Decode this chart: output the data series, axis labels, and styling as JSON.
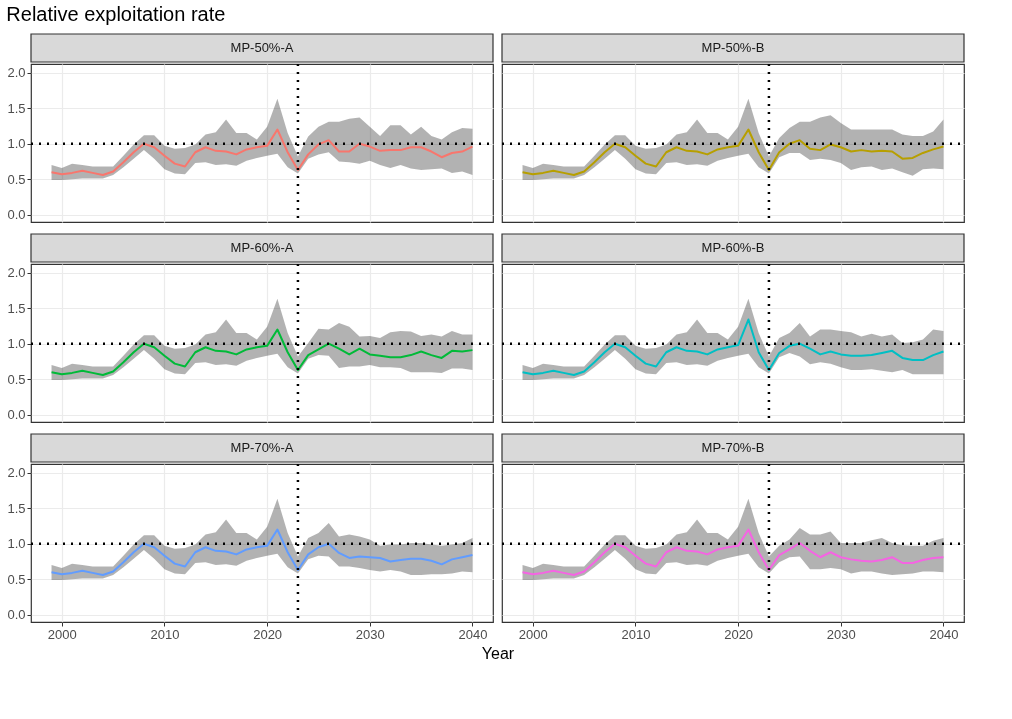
{
  "chart_data": [
    {
      "type": "line",
      "title": "MP-50%-A",
      "ylabel": "Relative exploitation rate",
      "x": [
        1999,
        2000,
        2001,
        2002,
        2003,
        2004,
        2005,
        2006,
        2007,
        2008,
        2009,
        2010,
        2011,
        2012,
        2013,
        2014,
        2015,
        2016,
        2017,
        2018,
        2019,
        2020,
        2021,
        2022,
        2023,
        2024,
        2025,
        2026,
        2027,
        2028,
        2029,
        2030,
        2031,
        2032,
        2033,
        2034,
        2035,
        2036,
        2037,
        2038,
        2039,
        2040
      ],
      "xlim": [
        1997,
        2042
      ],
      "xticks": [
        2000,
        2010,
        2020,
        2030,
        2040
      ],
      "ylim": [
        -0.1,
        2.12
      ],
      "yticks": [
        {
          "value": 0,
          "label": "0.0"
        },
        0.5,
        {
          "value": 1,
          "label": "1.0"
        },
        1.5,
        {
          "value": 2,
          "label": "2.0"
        }
      ],
      "grid": true,
      "tick_labels": "y",
      "series": [
        {
          "color": "#f8766d",
          "values": [
            0.6,
            0.57,
            0.59,
            0.62,
            0.59,
            0.56,
            0.61,
            0.74,
            0.88,
            1.0,
            0.95,
            0.83,
            0.72,
            0.68,
            0.88,
            0.95,
            0.9,
            0.89,
            0.85,
            0.92,
            0.95,
            0.97,
            1.2,
            0.88,
            0.63,
            0.85,
            0.99,
            1.05,
            0.89,
            0.89,
            1.0,
            0.96,
            0.9,
            0.91,
            0.91,
            0.95,
            0.95,
            0.89,
            0.81,
            0.87,
            0.89,
            0.96
          ],
          "upper": [
            0.7,
            0.66,
            0.72,
            0.7,
            0.68,
            0.68,
            0.68,
            0.83,
            0.99,
            1.12,
            1.12,
            0.97,
            0.93,
            0.94,
            0.99,
            1.13,
            1.16,
            1.34,
            1.15,
            1.15,
            1.06,
            1.24,
            1.63,
            1.15,
            0.82,
            1.1,
            1.24,
            1.31,
            1.31,
            1.35,
            1.37,
            1.24,
            1.11,
            1.26,
            1.26,
            1.13,
            1.24,
            1.11,
            1.06,
            1.16,
            1.22,
            1.21
          ],
          "lower": [
            0.49,
            0.49,
            0.5,
            0.51,
            0.51,
            0.51,
            0.56,
            0.67,
            0.79,
            0.91,
            0.79,
            0.64,
            0.58,
            0.57,
            0.73,
            0.74,
            0.7,
            0.71,
            0.69,
            0.76,
            0.8,
            0.83,
            0.86,
            0.67,
            0.58,
            0.79,
            0.85,
            0.88,
            0.75,
            0.74,
            0.72,
            0.76,
            0.7,
            0.66,
            0.7,
            0.65,
            0.63,
            0.64,
            0.65,
            0.59,
            0.61,
            0.56
          ]
        }
      ],
      "ref_lines": [
        {
          "axis": "x",
          "value": 2023,
          "color": "#000000",
          "line_style": "dotted"
        },
        {
          "axis": "y",
          "value": 1,
          "color": "#000000",
          "line_style": "dotted"
        }
      ]
    },
    {
      "type": "line",
      "title": "MP-50%-B",
      "x": [
        1999,
        2000,
        2001,
        2002,
        2003,
        2004,
        2005,
        2006,
        2007,
        2008,
        2009,
        2010,
        2011,
        2012,
        2013,
        2014,
        2015,
        2016,
        2017,
        2018,
        2019,
        2020,
        2021,
        2022,
        2023,
        2024,
        2025,
        2026,
        2027,
        2028,
        2029,
        2030,
        2031,
        2032,
        2033,
        2034,
        2035,
        2036,
        2037,
        2038,
        2039,
        2040
      ],
      "xlim": [
        1997,
        2042
      ],
      "xticks": [
        2000,
        2010,
        2020,
        2030,
        2040
      ],
      "ylim": [
        -0.1,
        2.12
      ],
      "yticks": [
        0,
        0.5,
        1,
        1.5,
        2
      ],
      "grid": true,
      "tick_labels": false,
      "series": [
        {
          "color": "#b79f00",
          "values": [
            0.6,
            0.57,
            0.59,
            0.62,
            0.59,
            0.56,
            0.61,
            0.74,
            0.88,
            1.0,
            0.95,
            0.83,
            0.72,
            0.68,
            0.88,
            0.95,
            0.9,
            0.89,
            0.85,
            0.92,
            0.95,
            0.97,
            1.2,
            0.88,
            0.63,
            0.88,
            1.0,
            1.05,
            0.93,
            0.91,
            0.99,
            0.95,
            0.89,
            0.91,
            0.89,
            0.9,
            0.89,
            0.79,
            0.8,
            0.87,
            0.92,
            0.96
          ],
          "upper": [
            0.7,
            0.66,
            0.72,
            0.7,
            0.68,
            0.68,
            0.68,
            0.83,
            0.99,
            1.12,
            1.12,
            0.97,
            0.93,
            0.94,
            0.99,
            1.13,
            1.16,
            1.34,
            1.15,
            1.15,
            1.06,
            1.24,
            1.63,
            1.15,
            0.82,
            1.08,
            1.22,
            1.31,
            1.31,
            1.37,
            1.4,
            1.29,
            1.2,
            1.2,
            1.2,
            1.2,
            1.2,
            1.13,
            1.11,
            1.11,
            1.17,
            1.34
          ],
          "lower": [
            0.49,
            0.49,
            0.5,
            0.51,
            0.51,
            0.51,
            0.56,
            0.67,
            0.79,
            0.91,
            0.79,
            0.64,
            0.58,
            0.57,
            0.73,
            0.74,
            0.7,
            0.71,
            0.69,
            0.76,
            0.8,
            0.83,
            0.86,
            0.67,
            0.58,
            0.81,
            0.87,
            0.87,
            0.77,
            0.79,
            0.77,
            0.73,
            0.63,
            0.67,
            0.68,
            0.63,
            0.65,
            0.6,
            0.55,
            0.64,
            0.65,
            0.64
          ]
        }
      ],
      "ref_lines": [
        {
          "axis": "x",
          "value": 2023,
          "color": "#000000",
          "line_style": "dotted"
        },
        {
          "axis": "y",
          "value": 1,
          "color": "#000000",
          "line_style": "dotted"
        }
      ]
    },
    {
      "type": "line",
      "title": "MP-60%-A",
      "x": [
        1999,
        2000,
        2001,
        2002,
        2003,
        2004,
        2005,
        2006,
        2007,
        2008,
        2009,
        2010,
        2011,
        2012,
        2013,
        2014,
        2015,
        2016,
        2017,
        2018,
        2019,
        2020,
        2021,
        2022,
        2023,
        2024,
        2025,
        2026,
        2027,
        2028,
        2029,
        2030,
        2031,
        2032,
        2033,
        2034,
        2035,
        2036,
        2037,
        2038,
        2039,
        2040
      ],
      "xlim": [
        1997,
        2042
      ],
      "xticks": [
        2000,
        2010,
        2020,
        2030,
        2040
      ],
      "ylim": [
        -0.1,
        2.12
      ],
      "yticks": [
        {
          "value": 0,
          "label": "0.0"
        },
        0.5,
        {
          "value": 1,
          "label": "1.0"
        },
        1.5,
        {
          "value": 2,
          "label": "2.0"
        }
      ],
      "grid": true,
      "tick_labels": "y",
      "series": [
        {
          "color": "#00ba38",
          "values": [
            0.6,
            0.57,
            0.59,
            0.62,
            0.59,
            0.56,
            0.61,
            0.74,
            0.88,
            1.0,
            0.95,
            0.83,
            0.72,
            0.68,
            0.88,
            0.95,
            0.9,
            0.89,
            0.85,
            0.92,
            0.95,
            0.97,
            1.2,
            0.88,
            0.63,
            0.84,
            0.92,
            1.0,
            0.93,
            0.85,
            0.93,
            0.85,
            0.83,
            0.81,
            0.81,
            0.84,
            0.89,
            0.84,
            0.8,
            0.9,
            0.89,
            0.91
          ],
          "upper": [
            0.7,
            0.66,
            0.72,
            0.7,
            0.68,
            0.68,
            0.68,
            0.83,
            0.99,
            1.12,
            1.12,
            0.97,
            0.93,
            0.94,
            0.99,
            1.13,
            1.16,
            1.34,
            1.15,
            1.15,
            1.06,
            1.24,
            1.63,
            1.15,
            0.82,
            1.01,
            1.21,
            1.2,
            1.29,
            1.24,
            1.1,
            1.11,
            1.08,
            1.16,
            1.18,
            1.17,
            1.11,
            1.13,
            1.1,
            1.18,
            1.13,
            1.13
          ],
          "lower": [
            0.49,
            0.49,
            0.5,
            0.51,
            0.51,
            0.51,
            0.56,
            0.67,
            0.79,
            0.91,
            0.79,
            0.64,
            0.58,
            0.57,
            0.73,
            0.74,
            0.7,
            0.71,
            0.69,
            0.76,
            0.8,
            0.83,
            0.86,
            0.67,
            0.58,
            0.79,
            0.84,
            0.83,
            0.66,
            0.68,
            0.68,
            0.7,
            0.67,
            0.67,
            0.66,
            0.6,
            0.6,
            0.6,
            0.59,
            0.65,
            0.65,
            0.63
          ]
        }
      ],
      "ref_lines": [
        {
          "axis": "x",
          "value": 2023,
          "color": "#000000",
          "line_style": "dotted"
        },
        {
          "axis": "y",
          "value": 1,
          "color": "#000000",
          "line_style": "dotted"
        }
      ]
    },
    {
      "type": "line",
      "title": "MP-60%-B",
      "x": [
        1999,
        2000,
        2001,
        2002,
        2003,
        2004,
        2005,
        2006,
        2007,
        2008,
        2009,
        2010,
        2011,
        2012,
        2013,
        2014,
        2015,
        2016,
        2017,
        2018,
        2019,
        2020,
        2021,
        2022,
        2023,
        2024,
        2025,
        2026,
        2027,
        2028,
        2029,
        2030,
        2031,
        2032,
        2033,
        2034,
        2035,
        2036,
        2037,
        2038,
        2039,
        2040
      ],
      "xlim": [
        1997,
        2042
      ],
      "xticks": [
        2000,
        2010,
        2020,
        2030,
        2040
      ],
      "ylim": [
        -0.1,
        2.12
      ],
      "yticks": [
        0,
        0.5,
        1,
        1.5,
        2
      ],
      "grid": true,
      "tick_labels": false,
      "series": [
        {
          "color": "#00bfc4",
          "values": [
            0.6,
            0.57,
            0.59,
            0.62,
            0.59,
            0.56,
            0.61,
            0.74,
            0.88,
            1.0,
            0.95,
            0.83,
            0.72,
            0.68,
            0.88,
            0.95,
            0.9,
            0.89,
            0.85,
            0.92,
            0.95,
            0.98,
            1.34,
            0.88,
            0.63,
            0.87,
            0.97,
            1.0,
            0.93,
            0.85,
            0.89,
            0.85,
            0.83,
            0.83,
            0.84,
            0.87,
            0.9,
            0.8,
            0.77,
            0.77,
            0.84,
            0.89
          ],
          "upper": [
            0.7,
            0.66,
            0.72,
            0.7,
            0.68,
            0.68,
            0.68,
            0.83,
            0.99,
            1.12,
            1.12,
            0.97,
            0.93,
            0.94,
            0.99,
            1.13,
            1.16,
            1.34,
            1.15,
            1.15,
            1.06,
            1.24,
            1.63,
            1.15,
            0.82,
            1.08,
            1.15,
            1.29,
            1.1,
            1.2,
            1.2,
            1.18,
            1.16,
            1.1,
            1.14,
            1.1,
            1.13,
            1.01,
            1.02,
            1.06,
            1.2,
            1.18
          ],
          "lower": [
            0.49,
            0.49,
            0.5,
            0.51,
            0.51,
            0.51,
            0.56,
            0.67,
            0.79,
            0.91,
            0.79,
            0.64,
            0.58,
            0.57,
            0.73,
            0.74,
            0.7,
            0.71,
            0.69,
            0.76,
            0.8,
            0.83,
            0.86,
            0.67,
            0.58,
            0.81,
            0.87,
            0.82,
            0.71,
            0.74,
            0.72,
            0.67,
            0.63,
            0.63,
            0.64,
            0.62,
            0.6,
            0.63,
            0.57,
            0.57,
            0.57,
            0.57
          ]
        }
      ],
      "ref_lines": [
        {
          "axis": "x",
          "value": 2023,
          "color": "#000000",
          "line_style": "dotted"
        },
        {
          "axis": "y",
          "value": 1,
          "color": "#000000",
          "line_style": "dotted"
        }
      ]
    },
    {
      "type": "line",
      "title": "MP-70%-A",
      "xlabel": "Year",
      "x": [
        1999,
        2000,
        2001,
        2002,
        2003,
        2004,
        2005,
        2006,
        2007,
        2008,
        2009,
        2010,
        2011,
        2012,
        2013,
        2014,
        2015,
        2016,
        2017,
        2018,
        2019,
        2020,
        2021,
        2022,
        2023,
        2024,
        2025,
        2026,
        2027,
        2028,
        2029,
        2030,
        2031,
        2032,
        2033,
        2034,
        2035,
        2036,
        2037,
        2038,
        2039,
        2040
      ],
      "xlim": [
        1997,
        2042
      ],
      "xticks": [
        2000,
        2010,
        2020,
        2030,
        2040
      ],
      "ylim": [
        -0.1,
        2.12
      ],
      "yticks": [
        {
          "value": 0,
          "label": "0.0"
        },
        0.5,
        {
          "value": 1,
          "label": "1.0"
        },
        1.5,
        {
          "value": 2,
          "label": "2.0"
        }
      ],
      "grid": true,
      "series": [
        {
          "color": "#619cff",
          "values": [
            0.6,
            0.57,
            0.59,
            0.62,
            0.59,
            0.56,
            0.61,
            0.74,
            0.88,
            1.0,
            0.95,
            0.83,
            0.72,
            0.68,
            0.88,
            0.95,
            0.9,
            0.89,
            0.85,
            0.92,
            0.95,
            0.97,
            1.2,
            0.88,
            0.63,
            0.85,
            0.95,
            1.0,
            0.87,
            0.8,
            0.82,
            0.81,
            0.8,
            0.75,
            0.77,
            0.79,
            0.79,
            0.76,
            0.71,
            0.78,
            0.81,
            0.84
          ],
          "upper": [
            0.7,
            0.66,
            0.72,
            0.7,
            0.68,
            0.68,
            0.68,
            0.83,
            0.99,
            1.12,
            1.12,
            0.97,
            0.93,
            0.94,
            0.99,
            1.13,
            1.16,
            1.34,
            1.15,
            1.15,
            1.06,
            1.24,
            1.63,
            1.15,
            0.82,
            1.08,
            1.15,
            1.29,
            1.1,
            1.13,
            1.1,
            1.06,
            0.97,
            0.99,
            0.99,
            1.01,
            1.01,
            0.99,
            0.97,
            0.99,
            1.01,
            1.08
          ],
          "lower": [
            0.49,
            0.49,
            0.5,
            0.51,
            0.51,
            0.51,
            0.56,
            0.67,
            0.79,
            0.91,
            0.79,
            0.64,
            0.58,
            0.57,
            0.73,
            0.74,
            0.7,
            0.71,
            0.69,
            0.76,
            0.8,
            0.83,
            0.86,
            0.67,
            0.58,
            0.78,
            0.83,
            0.82,
            0.68,
            0.68,
            0.66,
            0.63,
            0.61,
            0.63,
            0.61,
            0.56,
            0.56,
            0.57,
            0.57,
            0.58,
            0.61,
            0.6
          ]
        }
      ],
      "ref_lines": [
        {
          "axis": "x",
          "value": 2023,
          "color": "#000000",
          "line_style": "dotted"
        },
        {
          "axis": "y",
          "value": 1,
          "color": "#000000",
          "line_style": "dotted"
        }
      ]
    },
    {
      "type": "line",
      "title": "MP-70%-B",
      "x": [
        1999,
        2000,
        2001,
        2002,
        2003,
        2004,
        2005,
        2006,
        2007,
        2008,
        2009,
        2010,
        2011,
        2012,
        2013,
        2014,
        2015,
        2016,
        2017,
        2018,
        2019,
        2020,
        2021,
        2022,
        2023,
        2024,
        2025,
        2026,
        2027,
        2028,
        2029,
        2030,
        2031,
        2032,
        2033,
        2034,
        2035,
        2036,
        2037,
        2038,
        2039,
        2040
      ],
      "xlim": [
        1997,
        2042
      ],
      "xticks": [
        2000,
        2010,
        2020,
        2030,
        2040
      ],
      "ylim": [
        -0.1,
        2.12
      ],
      "yticks": [
        0,
        0.5,
        1,
        1.5,
        2
      ],
      "grid": true,
      "tick_labels": "x",
      "series": [
        {
          "color": "#f564e3",
          "values": [
            0.6,
            0.57,
            0.59,
            0.62,
            0.59,
            0.56,
            0.61,
            0.74,
            0.88,
            1.0,
            0.95,
            0.83,
            0.72,
            0.68,
            0.88,
            0.95,
            0.9,
            0.89,
            0.85,
            0.92,
            0.95,
            0.97,
            1.2,
            0.88,
            0.63,
            0.84,
            0.92,
            1.01,
            0.9,
            0.81,
            0.88,
            0.81,
            0.78,
            0.76,
            0.75,
            0.77,
            0.81,
            0.73,
            0.73,
            0.77,
            0.8,
            0.81
          ],
          "upper": [
            0.7,
            0.66,
            0.72,
            0.7,
            0.68,
            0.68,
            0.68,
            0.83,
            0.99,
            1.12,
            1.12,
            0.97,
            0.93,
            0.94,
            0.99,
            1.13,
            1.16,
            1.34,
            1.15,
            1.15,
            1.06,
            1.24,
            1.63,
            1.15,
            0.82,
            0.97,
            1.06,
            1.22,
            1.13,
            1.13,
            1.17,
            1.01,
            1.01,
            1.01,
            1.05,
            1.08,
            1.01,
            0.98,
            0.97,
            0.97,
            1.04,
            1.08
          ],
          "lower": [
            0.49,
            0.49,
            0.5,
            0.51,
            0.51,
            0.51,
            0.56,
            0.67,
            0.79,
            0.91,
            0.79,
            0.64,
            0.58,
            0.57,
            0.73,
            0.74,
            0.7,
            0.71,
            0.69,
            0.76,
            0.8,
            0.83,
            0.86,
            0.67,
            0.58,
            0.74,
            0.81,
            0.82,
            0.64,
            0.64,
            0.66,
            0.64,
            0.58,
            0.61,
            0.61,
            0.58,
            0.56,
            0.57,
            0.58,
            0.61,
            0.61,
            0.6
          ]
        }
      ],
      "ref_lines": [
        {
          "axis": "x",
          "value": 2023,
          "color": "#000000",
          "line_style": "dotted"
        },
        {
          "axis": "y",
          "value": 1,
          "color": "#000000",
          "line_style": "dotted"
        }
      ]
    }
  ]
}
